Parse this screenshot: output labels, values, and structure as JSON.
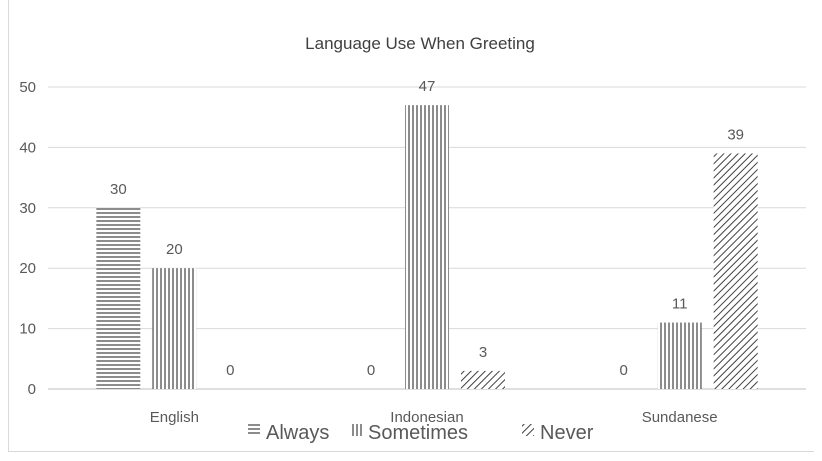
{
  "chart_data": {
    "type": "bar",
    "title": "Language Use When Greeting",
    "categories": [
      "English",
      "Indonesian",
      "Sundanese"
    ],
    "series": [
      {
        "name": "Always",
        "values": [
          30,
          0,
          0
        ],
        "pattern": "horizontal-lines"
      },
      {
        "name": "Sometimes",
        "values": [
          20,
          47,
          11
        ],
        "pattern": "vertical-lines"
      },
      {
        "name": "Never",
        "values": [
          0,
          3,
          39
        ],
        "pattern": "diagonal-lines"
      }
    ],
    "ylim": [
      0,
      50
    ],
    "yticks": [
      0,
      10,
      20,
      30,
      40,
      50
    ],
    "grid": true,
    "legend_position": "bottom",
    "data_labels": true,
    "colors": {
      "series": "#595959",
      "grid": "#d9d9d9",
      "text": "#595959"
    }
  }
}
